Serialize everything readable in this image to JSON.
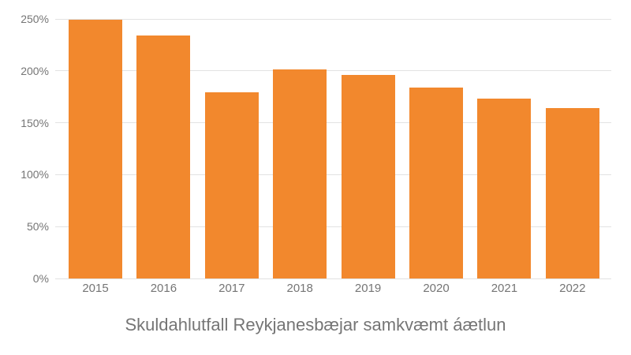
{
  "chart_data": {
    "type": "bar",
    "title": "Skuldahlutfall Reykjanesbæjar samkvæmt áætlun",
    "xlabel": "",
    "ylabel": "",
    "categories": [
      "2015",
      "2016",
      "2017",
      "2018",
      "2019",
      "2020",
      "2021",
      "2022"
    ],
    "values": [
      249,
      234,
      179,
      201,
      196,
      184,
      173,
      164
    ],
    "ylim": [
      0,
      250
    ],
    "ytick_step": 50,
    "yticks": [
      "0%",
      "50%",
      "100%",
      "150%",
      "200%",
      "250%"
    ],
    "grid": true,
    "legend": "none",
    "colors": {
      "bar": "#F2882D",
      "axis_label": "#757575",
      "title": "#757575",
      "gridline": "#e2e2e2",
      "background": "#ffffff"
    }
  }
}
